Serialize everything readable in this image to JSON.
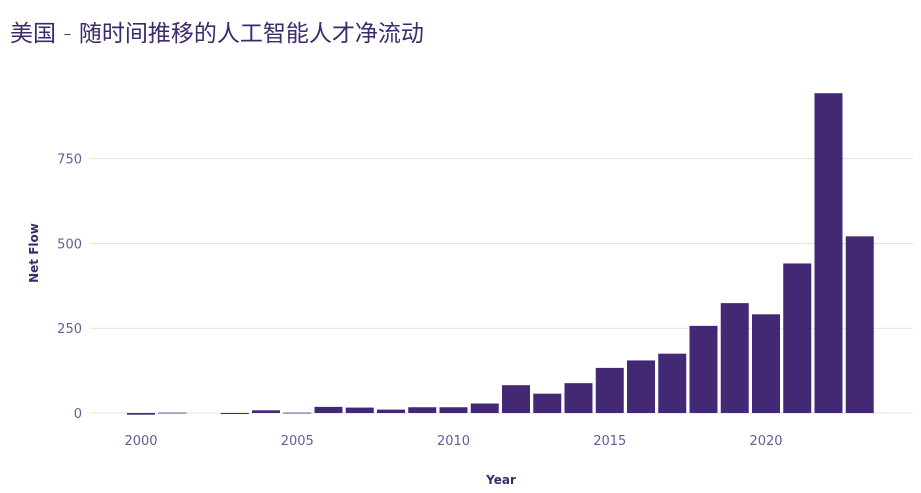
{
  "chart_data": {
    "type": "bar",
    "title": "美国 - 随时间推移的人工智能人才净流动",
    "xlabel": "Year",
    "ylabel": "Net Flow",
    "x": [
      2000,
      2001,
      2003,
      2004,
      2005,
      2006,
      2007,
      2008,
      2009,
      2010,
      2011,
      2012,
      2013,
      2014,
      2015,
      2016,
      2017,
      2018,
      2019,
      2020,
      2021,
      2022,
      2023
    ],
    "values": [
      -5,
      1,
      -3,
      8,
      1,
      18,
      16,
      10,
      17,
      17,
      28,
      82,
      57,
      88,
      133,
      155,
      175,
      257,
      324,
      291,
      441,
      943,
      521
    ],
    "x_ticks": [
      2000,
      2005,
      2010,
      2015,
      2020
    ],
    "y_ticks": [
      0,
      250,
      500,
      750
    ],
    "xlim": [
      1998.5,
      2025
    ],
    "ylim": [
      -30,
      1000
    ],
    "grid": "horizontal",
    "bar_color": "#432874",
    "grid_color": "#e3e3e3"
  }
}
